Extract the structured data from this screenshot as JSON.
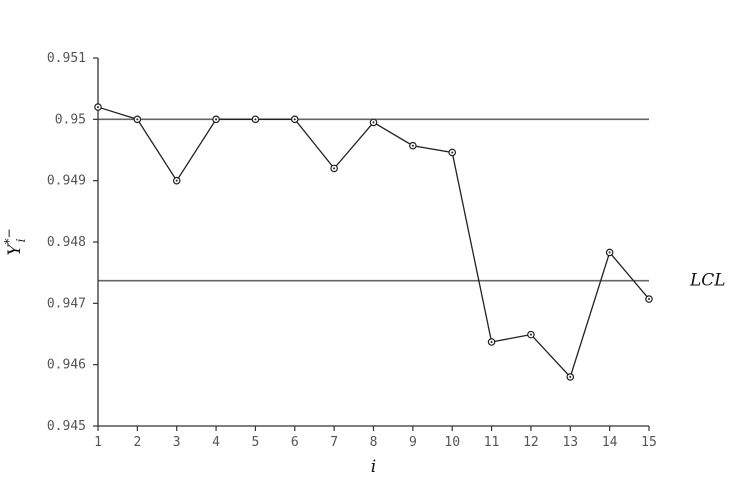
{
  "chart_data": {
    "type": "line",
    "title": "",
    "xlabel": "i",
    "ylabel": "Y",
    "ylabel_superscript": "*−",
    "ylabel_subscript": "i",
    "xlim": [
      1,
      15
    ],
    "ylim": [
      0.945,
      0.951
    ],
    "x_ticks": [
      "1",
      "2",
      "3",
      "4",
      "5",
      "6",
      "7",
      "8",
      "9",
      "10",
      "11",
      "12",
      "13",
      "14",
      "15"
    ],
    "y_ticks": [
      "0.945",
      "0.946",
      "0.947",
      "0.948",
      "0.949",
      "0.95",
      "0.951"
    ],
    "y_tick_values": [
      0.945,
      0.946,
      0.947,
      0.948,
      0.949,
      0.95,
      0.951
    ],
    "grid": false,
    "series": [
      {
        "x": [
          1,
          2,
          3,
          4,
          5,
          6,
          7,
          8,
          9,
          10,
          11,
          12,
          13,
          14,
          15
        ],
        "values": [
          0.9502,
          0.95,
          0.949,
          0.95,
          0.95,
          0.95,
          0.9492,
          0.94995,
          0.94957,
          0.94946,
          0.94637,
          0.94649,
          0.9458,
          0.94783,
          0.94707
        ]
      }
    ],
    "reference_lines": [
      {
        "y": 0.95,
        "label": ""
      },
      {
        "y": 0.94737,
        "label": "LCL"
      }
    ],
    "colors": {
      "line": "#222222",
      "marker": "#222222",
      "reference": "#666666",
      "axis": "#333333"
    }
  }
}
